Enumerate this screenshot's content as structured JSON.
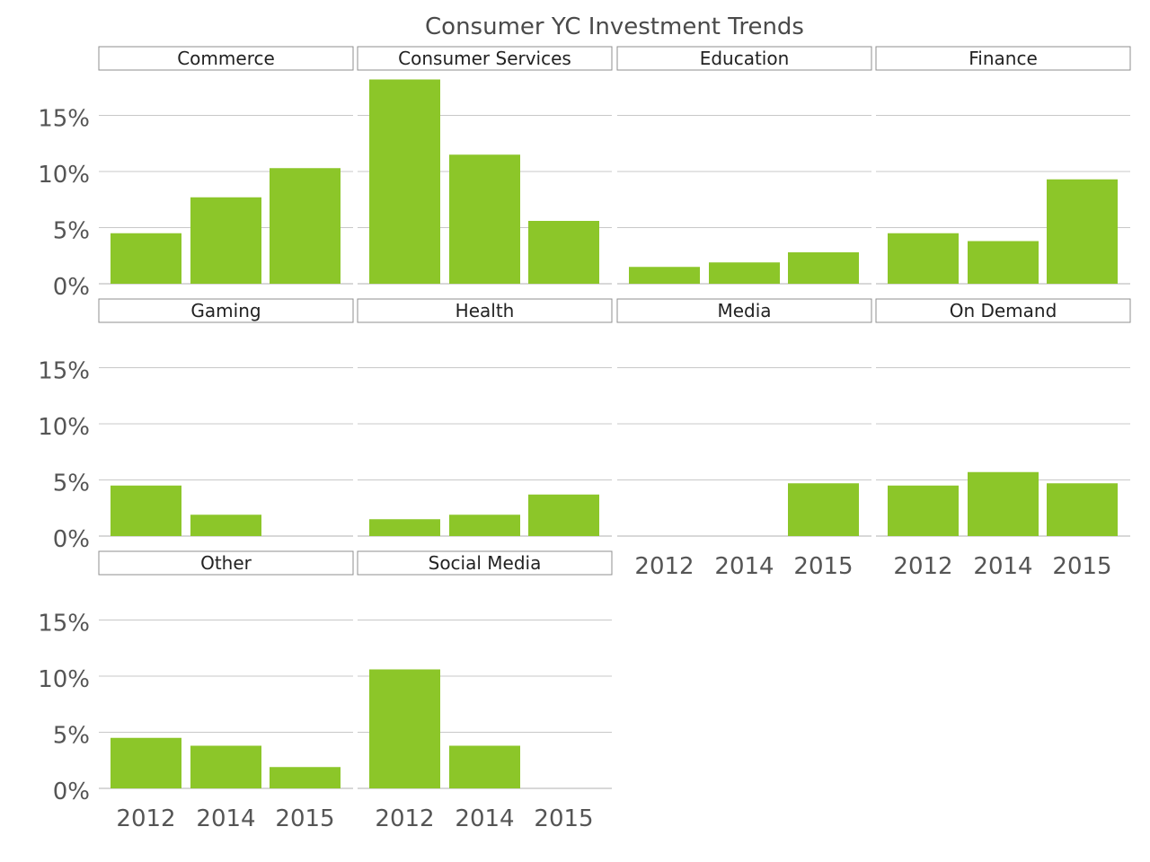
{
  "chart_data": {
    "type": "bar",
    "title": "Consumer YC Investment Trends",
    "facet_layout": "wrap",
    "ylim": [
      0,
      19
    ],
    "yticks": [
      0,
      5,
      10,
      15
    ],
    "ytick_labels": [
      "0%",
      "5%",
      "10%",
      "15%"
    ],
    "categories": [
      "2012",
      "2014",
      "2015"
    ],
    "bar_color": "#8cc629",
    "grid": true,
    "facets": [
      {
        "name": "Commerce",
        "values": [
          4.5,
          7.7,
          10.3
        ]
      },
      {
        "name": "Consumer Services",
        "values": [
          18.2,
          11.5,
          5.6
        ]
      },
      {
        "name": "Education",
        "values": [
          1.5,
          1.9,
          2.8
        ]
      },
      {
        "name": "Finance",
        "values": [
          4.5,
          3.8,
          9.3
        ]
      },
      {
        "name": "Gaming",
        "values": [
          4.5,
          1.9,
          0
        ]
      },
      {
        "name": "Health",
        "values": [
          1.5,
          1.9,
          3.7
        ]
      },
      {
        "name": "Media",
        "values": [
          0,
          0,
          4.7
        ]
      },
      {
        "name": "On Demand",
        "values": [
          4.5,
          5.7,
          4.7
        ]
      },
      {
        "name": "Other",
        "values": [
          4.5,
          3.8,
          1.9
        ]
      },
      {
        "name": "Social Media",
        "values": [
          10.6,
          3.8,
          0
        ]
      }
    ]
  }
}
